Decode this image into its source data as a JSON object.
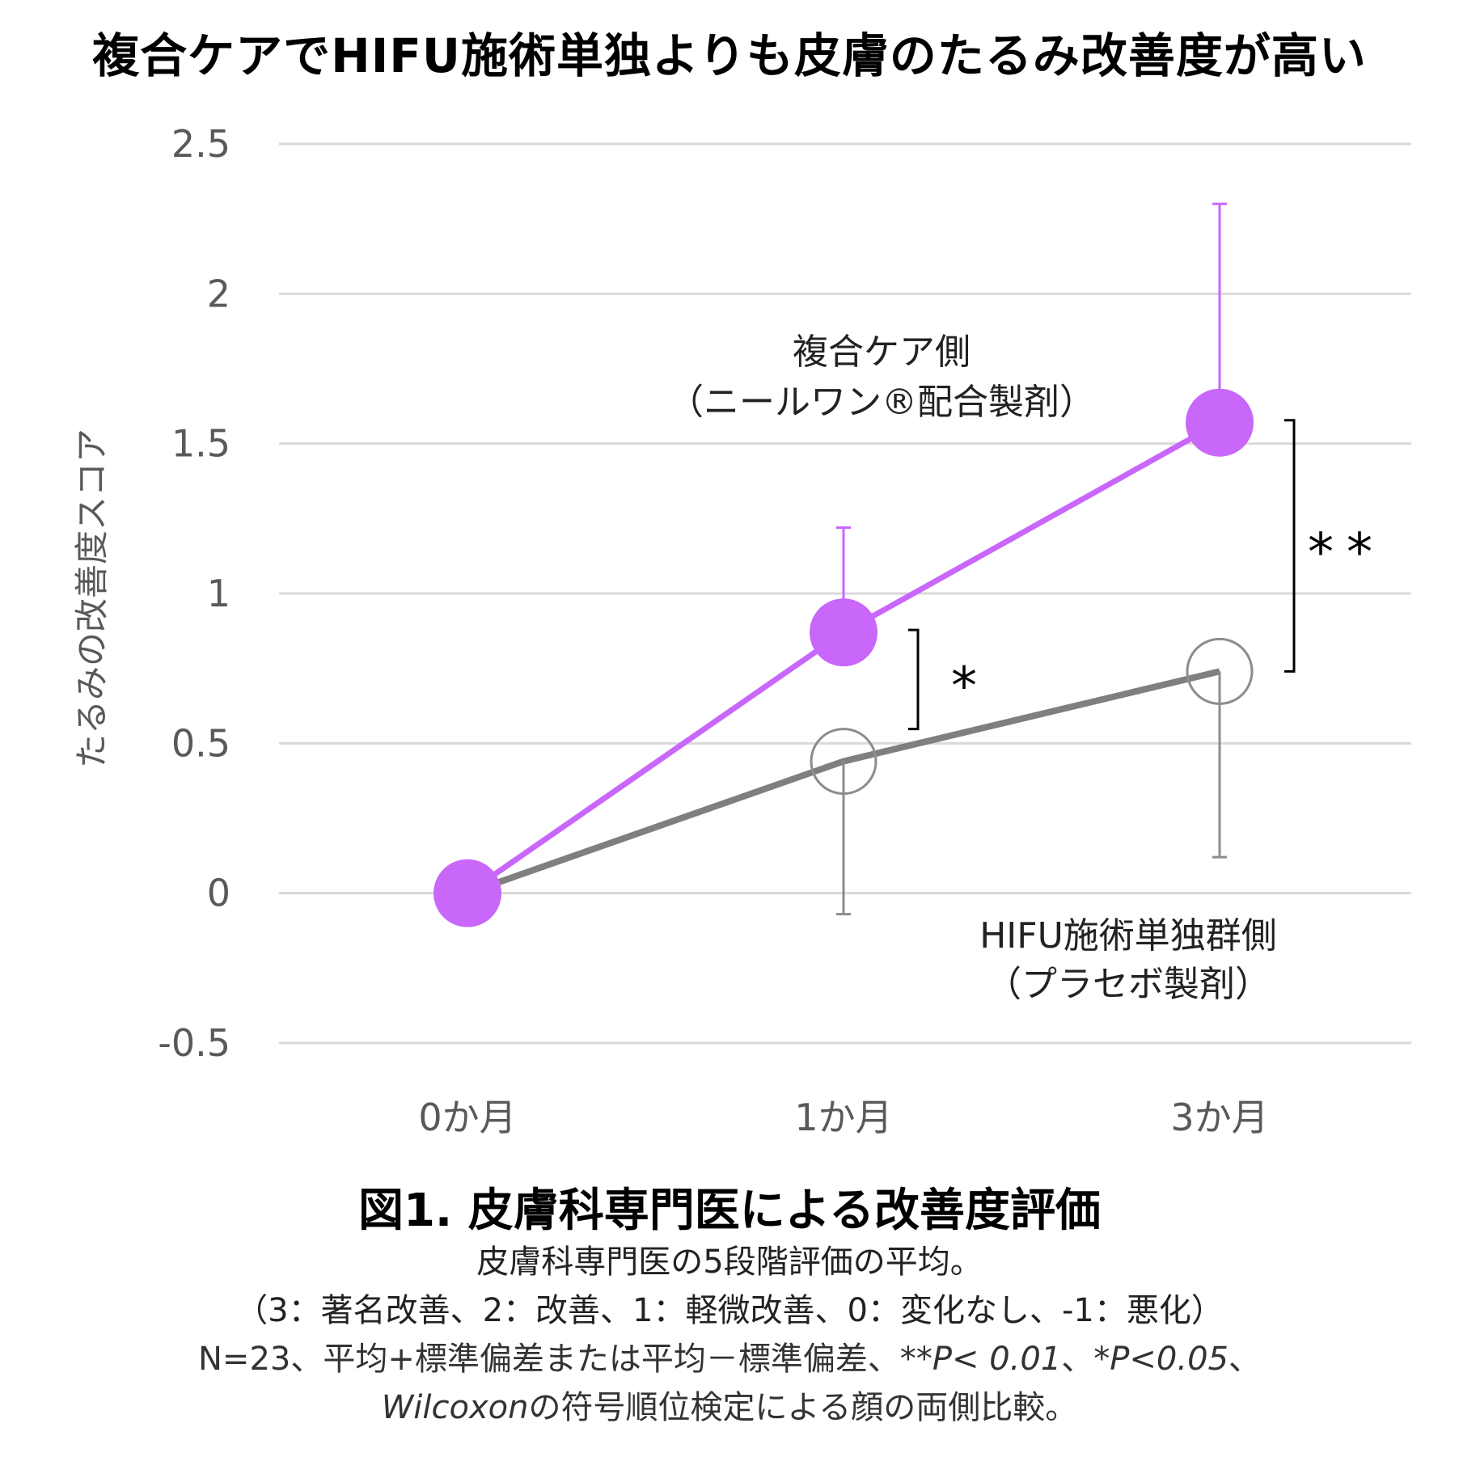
{
  "title": "複合ケアでHIFU施術単独よりも皮膚のたるみ改善度が高い",
  "chart_data": {
    "type": "line",
    "categories": [
      "0か月",
      "1か月",
      "3か月"
    ],
    "ylabel": "たるみの改善度スコア",
    "ylim": [
      -0.5,
      2.5
    ],
    "yticks": [
      2.5,
      2,
      1.5,
      1,
      0.5,
      0,
      -0.5
    ],
    "ytick_labels": [
      "2.5",
      "2",
      "1.5",
      "1",
      "0.5",
      "0",
      "-0.5"
    ],
    "grid": true,
    "series": [
      {
        "name": "複合ケア側",
        "name_sub": "（ニールワン®配合製剤）",
        "values": [
          0,
          0.87,
          1.57
        ],
        "error_up": [
          0,
          0.35,
          0.73
        ],
        "error_down": [
          0,
          0,
          0
        ],
        "color": "#c867fa",
        "marker": "filled-circle"
      },
      {
        "name": "HIFU施術単独群側",
        "name_sub": "（プラセボ製剤）",
        "values": [
          0,
          0.44,
          0.74
        ],
        "error_up": [
          0,
          0,
          0
        ],
        "error_down": [
          0,
          0.51,
          0.62
        ],
        "color": "#7f7f7f",
        "marker": "open-circle"
      }
    ],
    "significance": [
      {
        "category": "1か月",
        "label": "*"
      },
      {
        "category": "3か月",
        "label": "**"
      }
    ]
  },
  "caption": {
    "title": "図1. 皮膚科専門医による改善度評価",
    "line1": "皮膚科専門医の5段階評価の平均。",
    "line2": "（3：著名改善、2：改善、1：軽微改善、0：変化なし、-1：悪化）",
    "line3_a": "N=23、平均+標準偏差または平均－標準偏差、",
    "line3_b": "**P< 0.01",
    "line3_c": "、",
    "line3_d": "*P<0.05",
    "line3_e": "、",
    "line4_a": "Wilcoxon",
    "line4_b": "の符号順位検定による顔の両側比較。"
  }
}
